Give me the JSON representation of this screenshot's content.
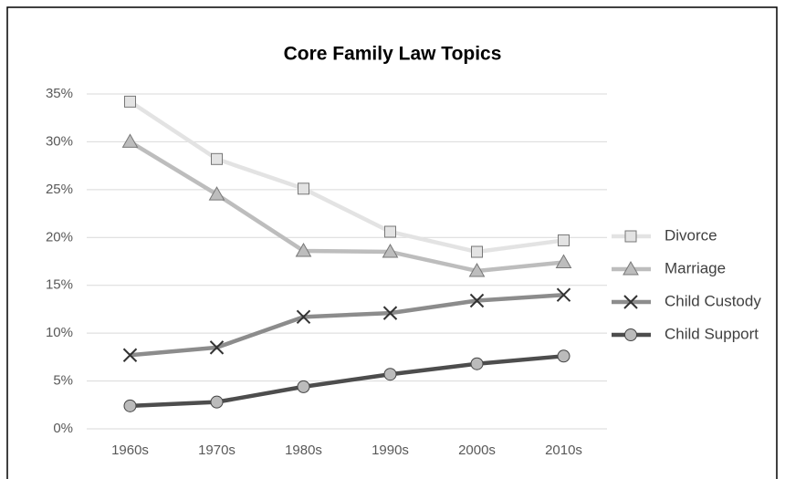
{
  "chart_data": {
    "type": "line",
    "title": "Core Family Law Topics",
    "categories": [
      "1960s",
      "1970s",
      "1980s",
      "1990s",
      "2000s",
      "2010s"
    ],
    "series": [
      {
        "name": "Divorce",
        "color": "#e3e3e3",
        "marker": "square",
        "values": [
          34.2,
          28.2,
          25.1,
          20.6,
          18.5,
          19.7
        ]
      },
      {
        "name": "Marriage",
        "color": "#bdbdbd",
        "marker": "triangle",
        "values": [
          30.0,
          24.5,
          18.6,
          18.5,
          16.5,
          17.4
        ]
      },
      {
        "name": "Child Custody",
        "color": "#8c8c8c",
        "marker": "x",
        "values": [
          7.7,
          8.5,
          11.7,
          12.1,
          13.4,
          14.0
        ]
      },
      {
        "name": "Child Support",
        "color": "#4d4d4d",
        "marker": "circle",
        "values": [
          2.4,
          2.8,
          4.4,
          5.7,
          6.8,
          7.6
        ]
      }
    ],
    "ylim": [
      0,
      35
    ],
    "yticks": [
      {
        "value": 0,
        "label": "0%"
      },
      {
        "value": 5,
        "label": "5%"
      },
      {
        "value": 10,
        "label": "10%"
      },
      {
        "value": 15,
        "label": "15%"
      },
      {
        "value": 20,
        "label": "20%"
      },
      {
        "value": 25,
        "label": "25%"
      },
      {
        "value": 30,
        "label": "30%"
      },
      {
        "value": 35,
        "label": "35%"
      }
    ],
    "grid": true,
    "legend": "right"
  }
}
